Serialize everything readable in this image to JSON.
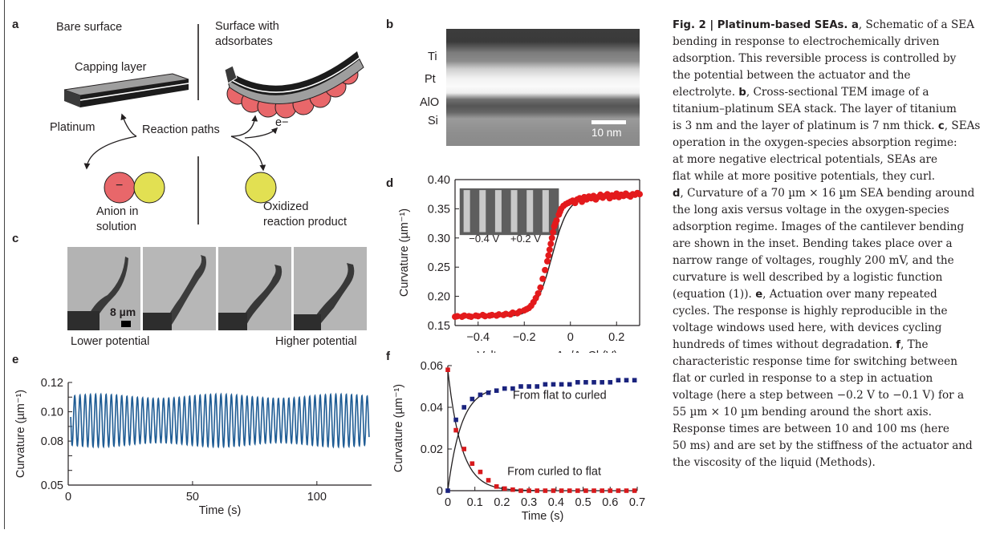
{
  "panel_letters": {
    "a": "a",
    "b": "b",
    "c": "c",
    "d": "d",
    "e": "e",
    "f": "f"
  },
  "panel_a": {
    "bare_surface": "Bare surface",
    "surface_with_line1": "Surface with",
    "surface_with_line2": "adsorbates",
    "capping_layer": "Capping layer",
    "platinum": "Platinum",
    "reaction_paths": "Reaction paths",
    "electron": "e−",
    "anion_sign": "−",
    "anion_line1": "Anion in",
    "anion_line2": "solution",
    "oxidized_line1": "Oxidized",
    "oxidized_line2": "reaction product",
    "colors": {
      "red": "#e8676a",
      "yellow": "#e2e052"
    }
  },
  "panel_b": {
    "layers": [
      "Ti",
      "Pt",
      "AlO",
      "Si"
    ],
    "scale_bar": "10 nm"
  },
  "panel_c": {
    "scale_bar": "8 µm",
    "lower": "Lower potential",
    "higher": "Higher potential"
  },
  "chart_data": [
    {
      "id": "d",
      "type": "scatter",
      "xlabel": "Voltage versus Ag/AgCl (V)",
      "ylabel": "Curvature (µm⁻¹)",
      "xlim": [
        -0.5,
        0.3
      ],
      "ylim": [
        0.15,
        0.4
      ],
      "xticks": [
        -0.4,
        -0.2,
        0,
        0.2
      ],
      "xtick_labels": [
        "−0.4",
        "−0.2",
        "0",
        "0.2"
      ],
      "yticks": [
        0.15,
        0.2,
        0.25,
        0.3,
        0.35,
        0.4
      ],
      "ytick_labels": [
        "0.15",
        "0.20",
        "0.25",
        "0.30",
        "0.35",
        "0.40"
      ],
      "inset_labels": [
        "−0.4 V",
        "+0.2 V"
      ],
      "fit": {
        "low": 0.165,
        "high": 0.372,
        "x0": -0.08,
        "k": 28
      },
      "x": [
        -0.5,
        -0.49,
        -0.47,
        -0.46,
        -0.44,
        -0.43,
        -0.41,
        -0.4,
        -0.38,
        -0.37,
        -0.35,
        -0.34,
        -0.32,
        -0.31,
        -0.29,
        -0.28,
        -0.26,
        -0.25,
        -0.23,
        -0.22,
        -0.2,
        -0.19,
        -0.18,
        -0.17,
        -0.16,
        -0.15,
        -0.14,
        -0.13,
        -0.12,
        -0.11,
        -0.1,
        -0.095,
        -0.09,
        -0.085,
        -0.08,
        -0.075,
        -0.07,
        -0.065,
        -0.06,
        -0.05,
        -0.045,
        -0.04,
        -0.03,
        -0.02,
        -0.01,
        0,
        0.01,
        0.02,
        0.03,
        0.04,
        0.05,
        0.06,
        0.07,
        0.08,
        0.09,
        0.1,
        0.11,
        0.12,
        0.13,
        0.14,
        0.15,
        0.16,
        0.17,
        0.18,
        0.19,
        0.2,
        0.21,
        0.22,
        0.23,
        0.24,
        0.25,
        0.26,
        0.27,
        0.28,
        0.29,
        0.3
      ],
      "values": [
        0.165,
        0.166,
        0.165,
        0.167,
        0.166,
        0.165,
        0.167,
        0.166,
        0.168,
        0.166,
        0.167,
        0.168,
        0.167,
        0.169,
        0.168,
        0.17,
        0.169,
        0.172,
        0.171,
        0.174,
        0.176,
        0.178,
        0.18,
        0.184,
        0.19,
        0.197,
        0.205,
        0.215,
        0.23,
        0.245,
        0.26,
        0.27,
        0.28,
        0.29,
        0.3,
        0.31,
        0.32,
        0.325,
        0.33,
        0.34,
        0.345,
        0.35,
        0.355,
        0.358,
        0.36,
        0.362,
        0.364,
        0.36,
        0.366,
        0.368,
        0.362,
        0.37,
        0.366,
        0.371,
        0.368,
        0.372,
        0.366,
        0.37,
        0.374,
        0.369,
        0.372,
        0.375,
        0.368,
        0.373,
        0.371,
        0.376,
        0.37,
        0.374,
        0.372,
        0.376,
        0.373,
        0.371,
        0.375,
        0.374,
        0.377,
        0.375
      ]
    },
    {
      "id": "e",
      "type": "line",
      "xlabel": "Time (s)",
      "ylabel": "Curvature (µm⁻¹)",
      "xlim": [
        0,
        122
      ],
      "ylim": [
        0.05,
        0.12
      ],
      "xticks": [
        0,
        50,
        100
      ],
      "xtick_labels": [
        "0",
        "50",
        "100"
      ],
      "yticks": [
        0.05,
        0.06,
        0.07,
        0.08,
        0.09,
        0.1,
        0.11,
        0.12
      ],
      "ytick_labels": [
        "0.05",
        "",
        "",
        "0.08",
        "",
        "0.10",
        "",
        "0.12"
      ],
      "signal": {
        "t_start": 1,
        "t_end": 121,
        "period": 2.1,
        "center": 0.094,
        "amplitude": 0.018,
        "color": "#1f5c94"
      }
    },
    {
      "id": "f",
      "type": "scatter",
      "xlabel": "Time (s)",
      "ylabel": "Curvature (µm⁻¹)",
      "xlim": [
        0,
        0.7
      ],
      "ylim": [
        0,
        0.06
      ],
      "xticks": [
        0,
        0.1,
        0.2,
        0.3,
        0.4,
        0.5,
        0.6,
        0.7
      ],
      "xtick_labels": [
        "0",
        "0.1",
        "0.2",
        "0.3",
        "0.4",
        "0.5",
        "0.6",
        "0.7"
      ],
      "yticks": [
        0,
        0.02,
        0.04,
        0.06
      ],
      "ytick_labels": [
        "0",
        "0.02",
        "0.04",
        "0.06"
      ],
      "series": [
        {
          "name": "From flat to curled",
          "color": "#1a237e",
          "x": [
            0.0,
            0.03,
            0.06,
            0.09,
            0.12,
            0.15,
            0.18,
            0.21,
            0.24,
            0.27,
            0.3,
            0.33,
            0.36,
            0.39,
            0.42,
            0.45,
            0.48,
            0.51,
            0.54,
            0.57,
            0.6,
            0.63,
            0.66,
            0.69
          ],
          "values": [
            0.0,
            0.034,
            0.04,
            0.044,
            0.046,
            0.047,
            0.048,
            0.049,
            0.049,
            0.05,
            0.05,
            0.05,
            0.051,
            0.051,
            0.051,
            0.051,
            0.052,
            0.052,
            0.052,
            0.052,
            0.052,
            0.053,
            0.053,
            0.053
          ]
        },
        {
          "name": "From curled to flat",
          "color": "#d7191c",
          "x": [
            0.0,
            0.03,
            0.06,
            0.09,
            0.12,
            0.15,
            0.18,
            0.21,
            0.24,
            0.27,
            0.3,
            0.33,
            0.36,
            0.39,
            0.42,
            0.45,
            0.48,
            0.51,
            0.54,
            0.57,
            0.6,
            0.63,
            0.66,
            0.69
          ],
          "values": [
            0.058,
            0.029,
            0.02,
            0.013,
            0.009,
            0.005,
            0.002,
            0.001,
            0.0005,
            0,
            0,
            0,
            0,
            0,
            0,
            0,
            0,
            0,
            0,
            0,
            0,
            0,
            0,
            0
          ]
        }
      ],
      "fits": [
        {
          "type": "rise",
          "amp": 0.05,
          "tau": 0.05
        },
        {
          "type": "decay",
          "amp": 0.058,
          "tau": 0.05
        }
      ]
    }
  ],
  "caption": {
    "lines": [
      [
        {
          "b": "Fig. 2 | Platinum-based SEAs. "
        },
        {
          "t": "a"
        },
        {
          "r": ", Schematic of a SEA"
        }
      ],
      [
        {
          "r": "bending in response to electrochemically driven"
        }
      ],
      [
        {
          "r": "adsorption. This reversible process is controlled by"
        }
      ],
      [
        {
          "r": "the potential between the actuator and the"
        }
      ],
      [
        {
          "r": "electrolyte. "
        },
        {
          "b": "b"
        },
        {
          "r": ", Cross-sectional TEM image of a"
        }
      ],
      [
        {
          "r": "titanium–platinum SEA stack. The layer of titanium"
        }
      ],
      [
        {
          "r": "is 3 nm and the layer of platinum is 7 nm thick. "
        },
        {
          "b": "c"
        },
        {
          "r": ", SEAs"
        }
      ],
      [
        {
          "r": "operation in the oxygen-species absorption regime:"
        }
      ],
      [
        {
          "r": "at more negative electrical potentials, SEAs are"
        }
      ],
      [
        {
          "r": "flat while at more positive potentials, they curl."
        }
      ],
      [
        {
          "b": "d"
        },
        {
          "r": ", Curvature of a 70 µm × 16 µm SEA bending around"
        }
      ],
      [
        {
          "r": "the long axis versus voltage in the oxygen-species"
        }
      ],
      [
        {
          "r": "adsorption regime. Images of the cantilever bending"
        }
      ],
      [
        {
          "r": "are shown in the inset. Bending takes place over a"
        }
      ],
      [
        {
          "r": "narrow range of voltages, roughly 200 mV, and the"
        }
      ],
      [
        {
          "r": "curvature is well described by a logistic function"
        }
      ],
      [
        {
          "r": "(equation (1)). "
        },
        {
          "b": "e"
        },
        {
          "r": ", Actuation over many repeated"
        }
      ],
      [
        {
          "r": "cycles. The response is highly reproducible in the"
        }
      ],
      [
        {
          "r": "voltage windows used here, with devices cycling"
        }
      ],
      [
        {
          "r": "hundreds of times without degradation. "
        },
        {
          "b": "f"
        },
        {
          "r": ", The"
        }
      ],
      [
        {
          "r": "characteristic response time for switching between"
        }
      ],
      [
        {
          "r": "flat or curled in response to a step in actuation"
        }
      ],
      [
        {
          "r": "voltage (here a step between −0.2 V to −0.1 V) for a"
        }
      ],
      [
        {
          "r": "55 µm × 10 µm bending around the short axis."
        }
      ],
      [
        {
          "r": "Response times are between 10 and 100 ms (here"
        }
      ],
      [
        {
          "r": "50 ms) and are set by the stiffness of the actuator and"
        }
      ],
      [
        {
          "r": "the viscosity of the liquid (Methods)."
        }
      ]
    ]
  }
}
